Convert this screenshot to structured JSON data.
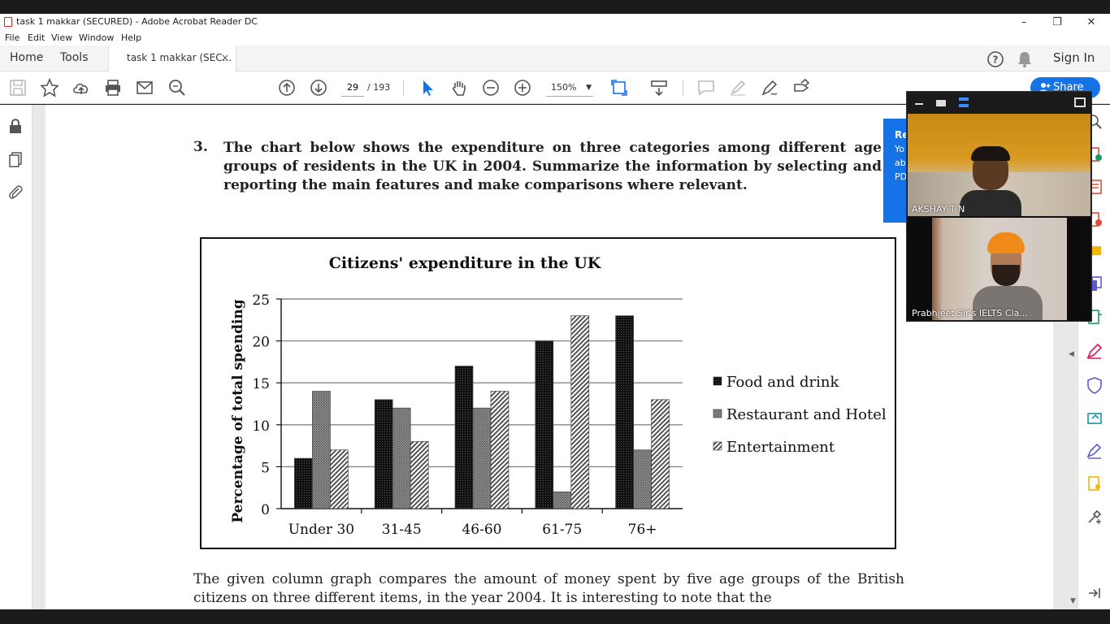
{
  "window": {
    "title": "task 1 makkar (SECURED) - Adobe Acrobat Reader DC",
    "minimize": "–",
    "restore": "❐",
    "close": "✕"
  },
  "menu": [
    "File",
    "Edit",
    "View",
    "Window",
    "Help"
  ],
  "tabs": {
    "home": "Home",
    "tools": "Tools",
    "document": "task 1 makkar (SEC...",
    "close": "×",
    "sign_in": "Sign In"
  },
  "toolbar": {
    "page_current": "29",
    "page_total": "/  193",
    "zoom": "150%"
  },
  "share": {
    "label": "Share"
  },
  "popup": {
    "line1": "Re",
    "line2": "Yo",
    "line3": "ab",
    "line4": "PD"
  },
  "document": {
    "question_number": "3.",
    "question_text": "The chart below shows the expenditure on three categories among different age groups of residents in the UK in 2004. Summarize the information by selecting and reporting the main features and make comparisons where relevant.",
    "answer_text": "The given column graph compares the amount of money spent by five age groups of the British citizens on three different items, in the year 2004. It is interesting to note that the"
  },
  "chart_data": {
    "type": "bar",
    "title": "Citizens' expenditure in the UK",
    "ylabel": "Percentage of total spending",
    "xlabel": "",
    "ylim": [
      0,
      25
    ],
    "yticks": [
      0,
      5,
      10,
      15,
      20,
      25
    ],
    "grid": true,
    "legend_position": "right",
    "categories": [
      "Under 30",
      "31-45",
      "46-60",
      "61-75",
      "76+"
    ],
    "series": [
      {
        "name": "Food and drink",
        "values": [
          6,
          13,
          17,
          20,
          23
        ]
      },
      {
        "name": "Restaurant and Hotel",
        "values": [
          14,
          12,
          12,
          2,
          7
        ]
      },
      {
        "name": "Entertainment",
        "values": [
          7,
          8,
          14,
          23,
          13
        ]
      }
    ]
  },
  "video_call": {
    "participants": [
      {
        "name": "AKSHAY T N"
      },
      {
        "name": "Prabhjeet Sir's IELTS Cla..."
      }
    ]
  }
}
